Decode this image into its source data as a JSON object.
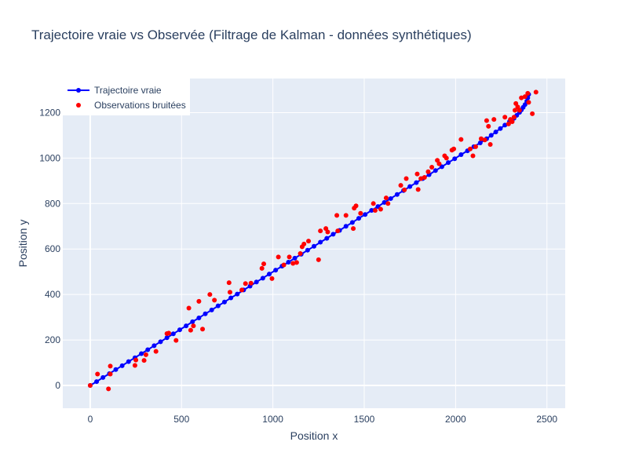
{
  "chart_data": {
    "type": "scatter",
    "title": "Trajectoire vraie vs Observée (Filtrage de Kalman - données synthétiques)",
    "xlabel": "Position x",
    "ylabel": "Position y",
    "xlim": [
      -150,
      2600
    ],
    "ylim": [
      -100,
      1350
    ],
    "xticks": [
      0,
      500,
      1000,
      1500,
      2000,
      2500
    ],
    "yticks": [
      0,
      200,
      400,
      600,
      800,
      1000,
      1200
    ],
    "grid": true,
    "legend_position": "top-left",
    "colors": {
      "true": "#0000ff",
      "obs": "#ff0000",
      "plot_bg": "#e5ecf6",
      "grid": "#ffffff"
    },
    "series": [
      {
        "name": "Trajectoire vraie",
        "mode": "lines+markers",
        "x": [
          0,
          35,
          70,
          105,
          140,
          175,
          210,
          245,
          280,
          315,
          350,
          385,
          420,
          455,
          490,
          525,
          560,
          595,
          630,
          665,
          700,
          735,
          770,
          805,
          840,
          875,
          910,
          945,
          980,
          1015,
          1050,
          1085,
          1120,
          1155,
          1190,
          1225,
          1260,
          1295,
          1330,
          1365,
          1400,
          1435,
          1470,
          1505,
          1540,
          1575,
          1610,
          1645,
          1680,
          1715,
          1750,
          1785,
          1820,
          1855,
          1890,
          1925,
          1960,
          1995,
          2030,
          2065,
          2100,
          2135,
          2170,
          2195,
          2220,
          2245,
          2270,
          2295,
          2320,
          2335,
          2350,
          2360,
          2370,
          2380,
          2390,
          2395,
          2400
        ],
        "y": [
          0,
          17,
          35,
          52,
          70,
          87,
          105,
          122,
          140,
          157,
          175,
          192,
          210,
          227,
          245,
          262,
          280,
          297,
          315,
          332,
          350,
          367,
          385,
          402,
          420,
          437,
          455,
          472,
          490,
          507,
          525,
          542,
          560,
          577,
          595,
          612,
          630,
          647,
          665,
          682,
          700,
          717,
          735,
          752,
          770,
          787,
          805,
          822,
          840,
          857,
          875,
          892,
          910,
          927,
          945,
          962,
          980,
          997,
          1015,
          1032,
          1050,
          1067,
          1085,
          1100,
          1115,
          1130,
          1145,
          1160,
          1175,
          1188,
          1201,
          1212,
          1223,
          1235,
          1250,
          1265,
          1280
        ]
      },
      {
        "name": "Observations bruitées",
        "mode": "markers",
        "x": [
          0,
          40,
          110,
          100,
          110,
          245,
          250,
          295,
          305,
          360,
          420,
          430,
          470,
          540,
          550,
          565,
          595,
          615,
          655,
          680,
          760,
          765,
          830,
          850,
          880,
          940,
          950,
          995,
          1030,
          1060,
          1090,
          1110,
          1130,
          1150,
          1160,
          1170,
          1195,
          1250,
          1260,
          1290,
          1300,
          1350,
          1355,
          1400,
          1440,
          1445,
          1455,
          1480,
          1550,
          1560,
          1590,
          1620,
          1630,
          1700,
          1720,
          1730,
          1790,
          1795,
          1810,
          1830,
          1850,
          1870,
          1900,
          1910,
          1940,
          1950,
          1980,
          1990,
          2030,
          2080,
          2095,
          2110,
          2140,
          2160,
          2170,
          2180,
          2190,
          2210,
          2270,
          2290,
          2300,
          2310,
          2320,
          2325,
          2330,
          2340,
          2350,
          2360,
          2380,
          2395,
          2400,
          2420,
          2440
        ],
        "y": [
          0,
          50,
          85,
          -15,
          50,
          88,
          112,
          110,
          135,
          150,
          228,
          230,
          198,
          340,
          243,
          262,
          370,
          248,
          400,
          375,
          452,
          410,
          420,
          448,
          450,
          515,
          535,
          470,
          565,
          530,
          565,
          537,
          541,
          580,
          610,
          622,
          635,
          553,
          680,
          690,
          675,
          748,
          680,
          748,
          690,
          780,
          790,
          757,
          800,
          770,
          775,
          825,
          800,
          880,
          860,
          910,
          930,
          862,
          910,
          915,
          940,
          960,
          990,
          975,
          1010,
          1000,
          1035,
          1040,
          1082,
          1040,
          1010,
          1050,
          1085,
          1080,
          1165,
          1140,
          1060,
          1170,
          1180,
          1150,
          1170,
          1160,
          1180,
          1210,
          1240,
          1225,
          1210,
          1265,
          1270,
          1285,
          1245,
          1195,
          1290
        ]
      }
    ]
  }
}
